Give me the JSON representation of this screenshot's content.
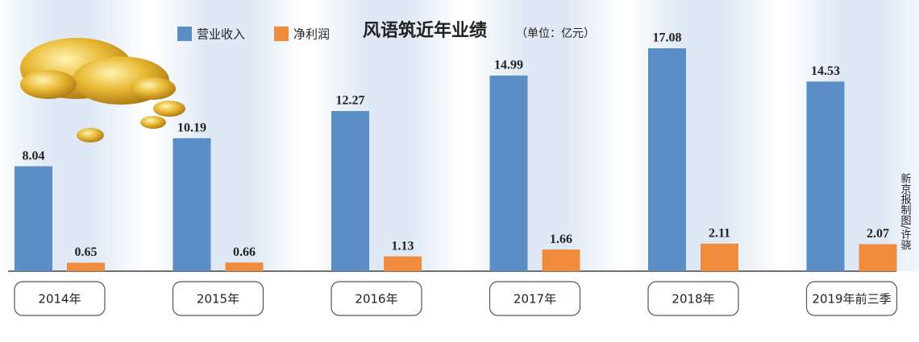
{
  "chart_data": {
    "type": "bar",
    "title": "风语筑近年业绩",
    "subtitle": "（单位：亿元）",
    "categories": [
      "2014年",
      "2015年",
      "2016年",
      "2017年",
      "2018年",
      "2019年前三季"
    ],
    "series": [
      {
        "name": "营业收入",
        "color": "#5b8ec5",
        "values": [
          8.04,
          10.19,
          12.27,
          14.99,
          17.08,
          14.53
        ]
      },
      {
        "name": "净利润",
        "color": "#f08a3c",
        "values": [
          0.65,
          0.66,
          1.13,
          1.66,
          2.11,
          2.07
        ]
      }
    ],
    "credit": "新京报制图/许骁"
  }
}
